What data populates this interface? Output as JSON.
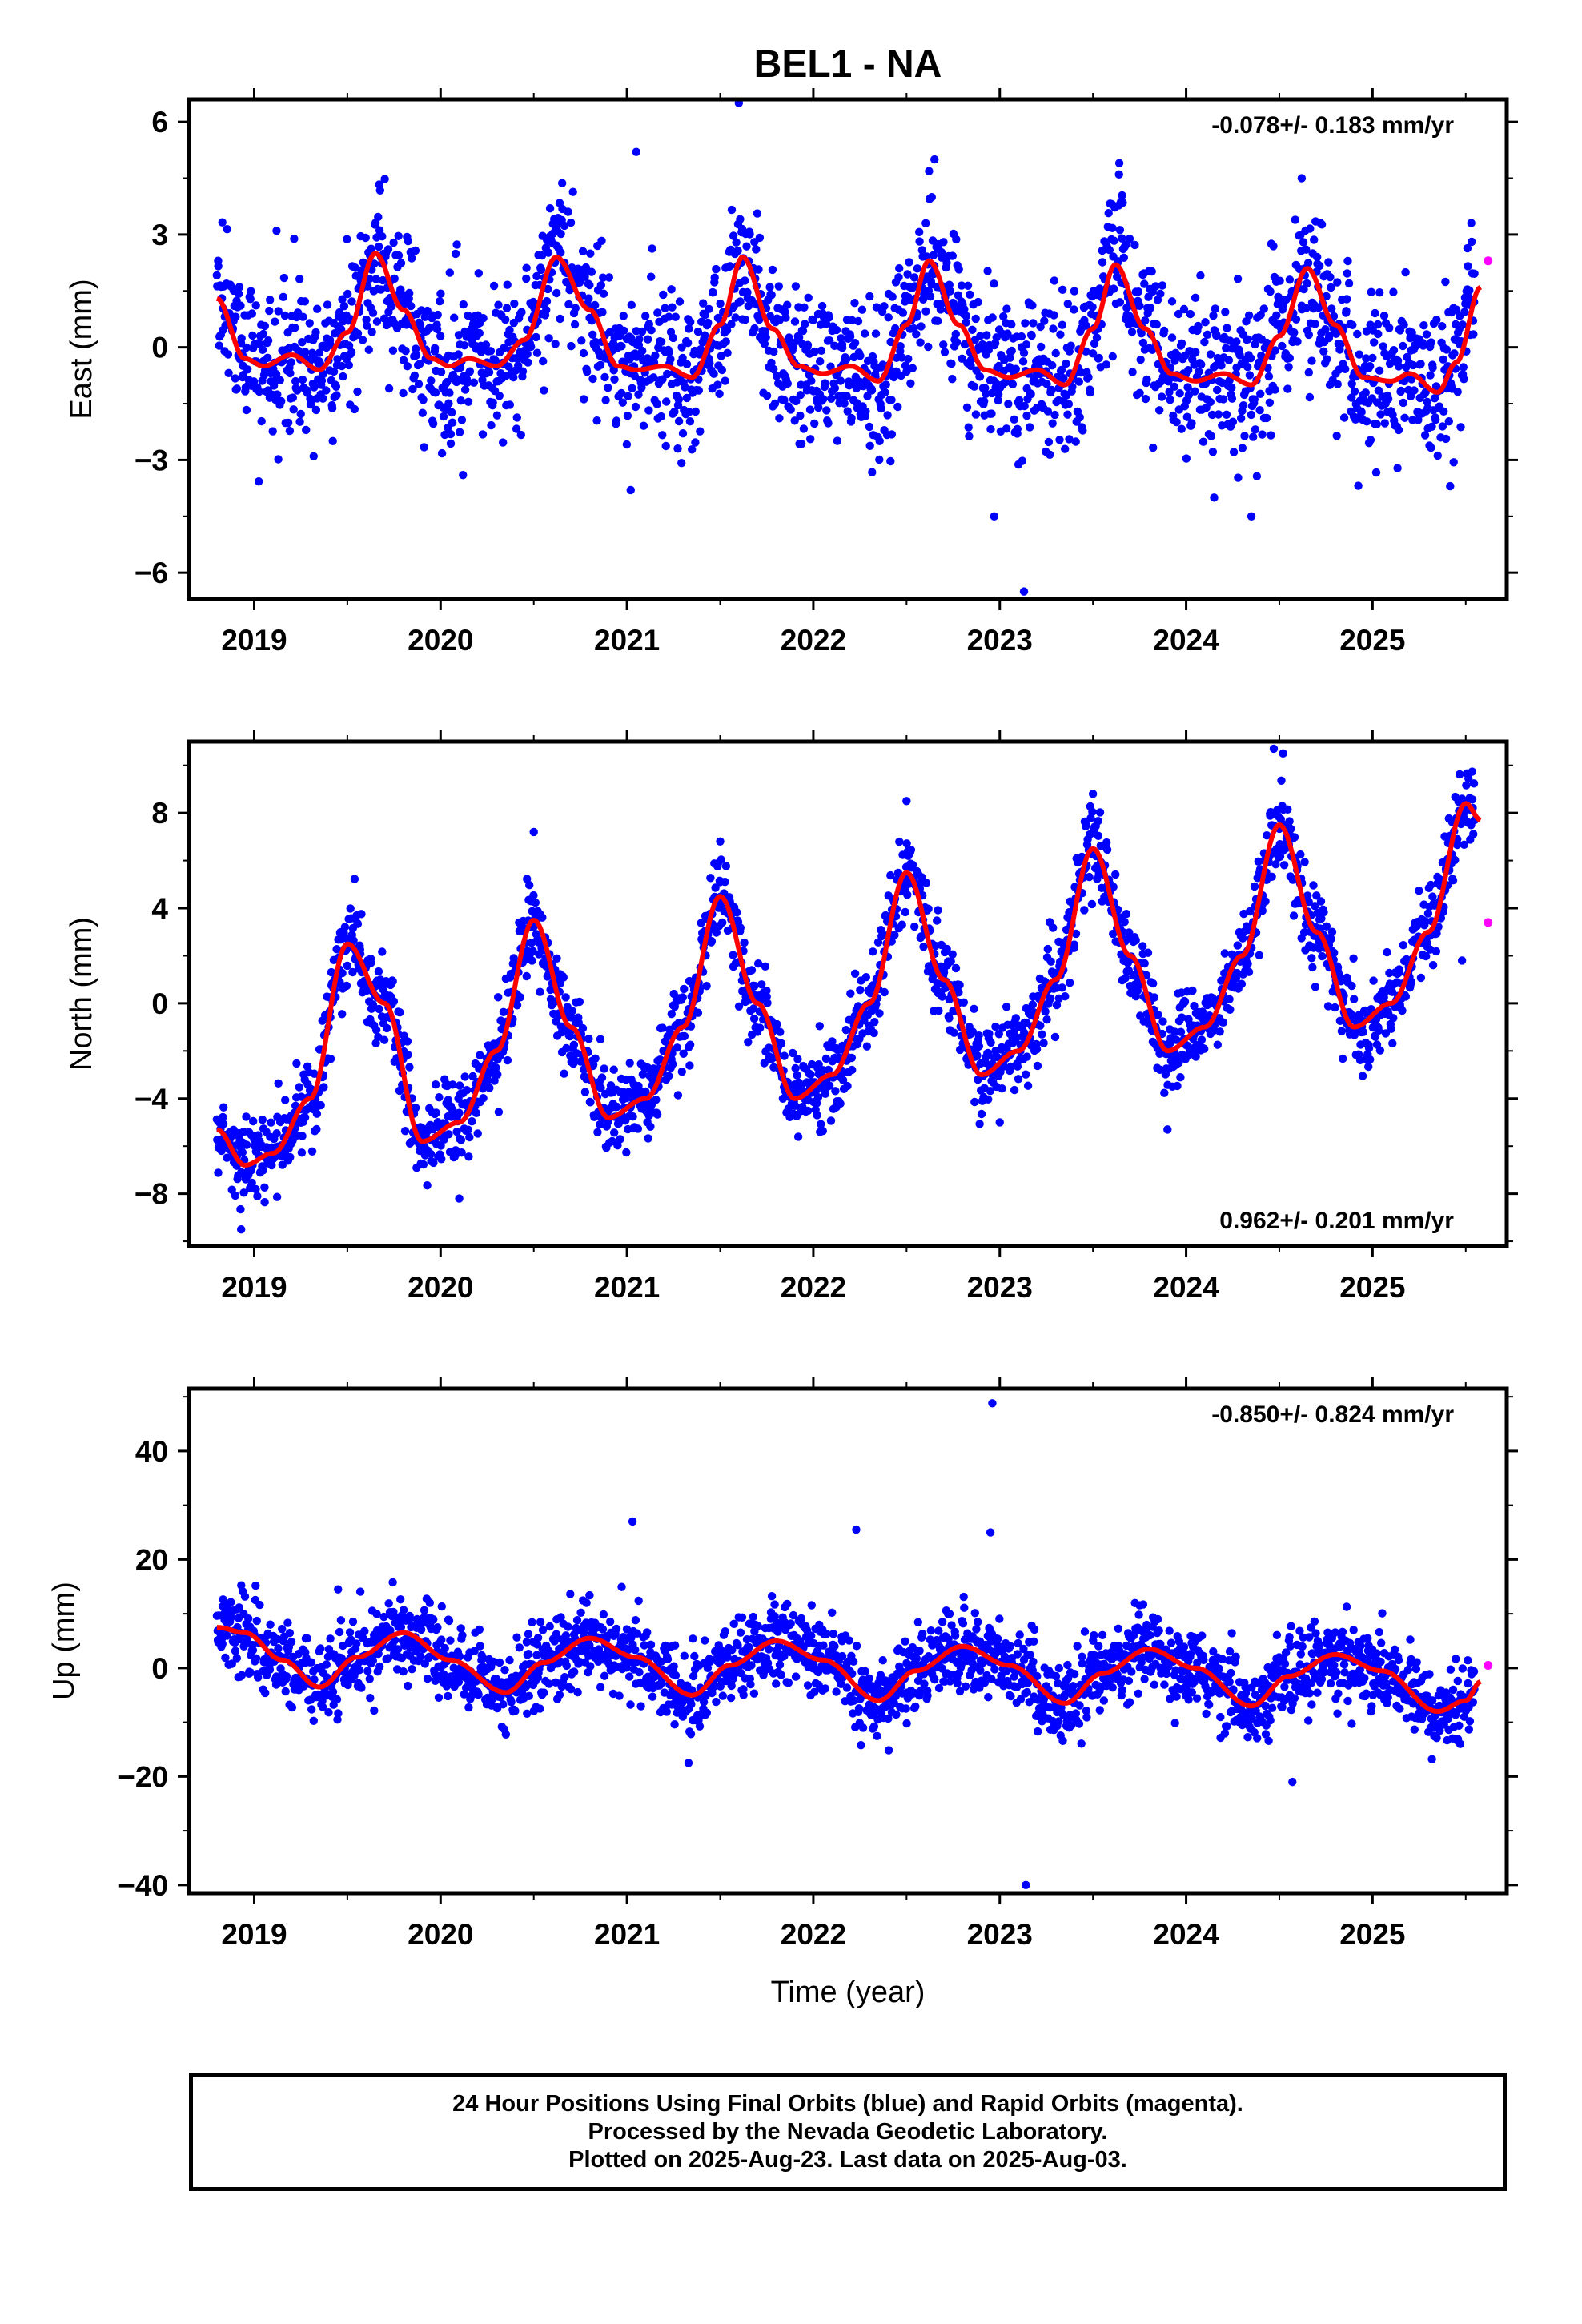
{
  "title": "BEL1 - NA",
  "colors": {
    "final": "#0000ff",
    "rapid": "#ff00ff",
    "model": "#ff0000",
    "frame": "#000000"
  },
  "chart_data": [
    {
      "type": "scatter",
      "ylabel": "East (mm)",
      "rate_label": "-0.078+/- 0.183 mm/yr",
      "xlim": [
        2018.65,
        2025.72
      ],
      "ylim": [
        -6.7,
        6.6
      ],
      "yticks": [
        -6,
        -3,
        0,
        3,
        6
      ],
      "ytick_labels": [
        "−6",
        "−3",
        "0",
        "3",
        "6"
      ],
      "xticks": [
        2019,
        2020,
        2021,
        2022,
        2023,
        2024,
        2025
      ],
      "xtick_labels": [
        "2019",
        "2020",
        "2021",
        "2022",
        "2023",
        "2024",
        "2025"
      ],
      "data_range": [
        2018.8,
        2025.55
      ],
      "trend_mm_per_yr": -0.078,
      "model_points": [
        [
          2018.8,
          1.3
        ],
        [
          2018.95,
          -0.3
        ],
        [
          2019.05,
          -0.5
        ],
        [
          2019.2,
          -0.2
        ],
        [
          2019.35,
          -0.6
        ],
        [
          2019.5,
          0.4
        ],
        [
          2019.65,
          2.5
        ],
        [
          2019.8,
          1.0
        ],
        [
          2019.95,
          -0.3
        ],
        [
          2020.05,
          -0.5
        ],
        [
          2020.15,
          -0.3
        ],
        [
          2020.3,
          -0.5
        ],
        [
          2020.45,
          0.2
        ],
        [
          2020.62,
          2.4
        ],
        [
          2020.8,
          1.0
        ],
        [
          2020.95,
          -0.5
        ],
        [
          2021.05,
          -0.6
        ],
        [
          2021.2,
          -0.5
        ],
        [
          2021.35,
          -0.8
        ],
        [
          2021.5,
          0.6
        ],
        [
          2021.62,
          2.4
        ],
        [
          2021.78,
          0.5
        ],
        [
          2021.92,
          -0.5
        ],
        [
          2022.05,
          -0.7
        ],
        [
          2022.2,
          -0.5
        ],
        [
          2022.35,
          -0.9
        ],
        [
          2022.5,
          0.6
        ],
        [
          2022.62,
          2.3
        ],
        [
          2022.78,
          0.6
        ],
        [
          2022.92,
          -0.6
        ],
        [
          2023.05,
          -0.8
        ],
        [
          2023.2,
          -0.6
        ],
        [
          2023.35,
          -1.0
        ],
        [
          2023.5,
          0.5
        ],
        [
          2023.62,
          2.2
        ],
        [
          2023.78,
          0.5
        ],
        [
          2023.92,
          -0.7
        ],
        [
          2024.05,
          -0.9
        ],
        [
          2024.2,
          -0.7
        ],
        [
          2024.35,
          -1.0
        ],
        [
          2024.5,
          0.3
        ],
        [
          2024.65,
          2.1
        ],
        [
          2024.8,
          0.6
        ],
        [
          2024.95,
          -0.8
        ],
        [
          2025.1,
          -0.9
        ],
        [
          2025.2,
          -0.7
        ],
        [
          2025.35,
          -1.2
        ],
        [
          2025.45,
          -0.4
        ],
        [
          2025.58,
          1.6
        ]
      ],
      "residual_sd_mm": 1.0,
      "outliers": [
        [
          2019.12,
          3.1
        ],
        [
          2020.12,
          -3.4
        ],
        [
          2021.05,
          5.2
        ],
        [
          2021.02,
          -3.8
        ],
        [
          2021.6,
          6.5
        ],
        [
          2022.65,
          5.0
        ],
        [
          2022.97,
          -4.5
        ],
        [
          2023.13,
          -6.5
        ],
        [
          2024.15,
          -4.0
        ],
        [
          2024.35,
          -4.5
        ],
        [
          2024.62,
          4.5
        ],
        [
          2023.64,
          4.6
        ]
      ],
      "rapid_points": [
        [
          2025.62,
          2.3
        ]
      ]
    },
    {
      "type": "scatter",
      "ylabel": "North (mm)",
      "rate_label": "0.962+/- 0.201 mm/yr",
      "xlim": [
        2018.65,
        2025.72
      ],
      "ylim": [
        -10.2,
        11.0
      ],
      "yticks": [
        -8,
        -4,
        0,
        4,
        8
      ],
      "ytick_labels": [
        "−8",
        "−4",
        "0",
        "4",
        "8"
      ],
      "xticks": [
        2019,
        2020,
        2021,
        2022,
        2023,
        2024,
        2025
      ],
      "xtick_labels": [
        "2019",
        "2020",
        "2021",
        "2022",
        "2023",
        "2024",
        "2025"
      ],
      "data_range": [
        2018.8,
        2025.55
      ],
      "trend_mm_per_yr": 0.962,
      "model_points": [
        [
          2018.8,
          -5.3
        ],
        [
          2018.95,
          -6.8
        ],
        [
          2019.1,
          -6.3
        ],
        [
          2019.3,
          -4.0
        ],
        [
          2019.5,
          2.5
        ],
        [
          2019.7,
          0.0
        ],
        [
          2019.9,
          -5.8
        ],
        [
          2020.1,
          -5.0
        ],
        [
          2020.3,
          -2.0
        ],
        [
          2020.5,
          3.5
        ],
        [
          2020.7,
          -1.0
        ],
        [
          2020.9,
          -4.8
        ],
        [
          2021.1,
          -4.0
        ],
        [
          2021.3,
          -1.0
        ],
        [
          2021.5,
          4.5
        ],
        [
          2021.7,
          0.0
        ],
        [
          2021.9,
          -4.0
        ],
        [
          2022.1,
          -3.0
        ],
        [
          2022.3,
          0.0
        ],
        [
          2022.5,
          5.5
        ],
        [
          2022.7,
          1.0
        ],
        [
          2022.9,
          -3.0
        ],
        [
          2023.1,
          -2.0
        ],
        [
          2023.3,
          1.0
        ],
        [
          2023.5,
          6.5
        ],
        [
          2023.7,
          2.0
        ],
        [
          2023.9,
          -2.0
        ],
        [
          2024.1,
          -1.0
        ],
        [
          2024.3,
          2.0
        ],
        [
          2024.5,
          7.5
        ],
        [
          2024.7,
          3.0
        ],
        [
          2024.9,
          -1.0
        ],
        [
          2025.1,
          0.0
        ],
        [
          2025.3,
          3.0
        ],
        [
          2025.5,
          8.4
        ],
        [
          2025.58,
          7.7
        ]
      ],
      "residual_sd_mm": 0.9,
      "outliers": [
        [
          2018.93,
          -9.5
        ],
        [
          2020.1,
          -8.2
        ],
        [
          2020.5,
          7.2
        ],
        [
          2021.5,
          6.8
        ],
        [
          2022.5,
          8.5
        ],
        [
          2023.5,
          8.8
        ],
        [
          2024.47,
          10.7
        ],
        [
          2024.52,
          10.5
        ],
        [
          2025.48,
          1.8
        ],
        [
          2023.0,
          -5.0
        ],
        [
          2023.9,
          -5.3
        ]
      ],
      "rapid_points": [
        [
          2025.62,
          3.4
        ]
      ]
    },
    {
      "type": "scatter",
      "ylabel": "Up (mm)",
      "rate_label": "-0.850+/- 0.824 mm/yr",
      "xlabel": "Time (year)",
      "xlim": [
        2018.65,
        2025.72
      ],
      "ylim": [
        -41.5,
        51.5
      ],
      "yticks": [
        -40,
        -20,
        0,
        20,
        40
      ],
      "ytick_labels": [
        "−40",
        "−20",
        "0",
        "20",
        "40"
      ],
      "xticks": [
        2019,
        2020,
        2021,
        2022,
        2023,
        2024,
        2025
      ],
      "xtick_labels": [
        "2019",
        "2020",
        "2021",
        "2022",
        "2023",
        "2024",
        "2025"
      ],
      "data_range": [
        2018.8,
        2025.55
      ],
      "trend_mm_per_yr": -0.85,
      "model_points": [
        [
          2018.8,
          7.5
        ],
        [
          2018.95,
          6.5
        ],
        [
          2019.15,
          1.5
        ],
        [
          2019.35,
          -3.5
        ],
        [
          2019.55,
          2.0
        ],
        [
          2019.8,
          6.5
        ],
        [
          2020.05,
          1.5
        ],
        [
          2020.35,
          -4.5
        ],
        [
          2020.55,
          1.0
        ],
        [
          2020.8,
          5.5
        ],
        [
          2021.05,
          2.0
        ],
        [
          2021.35,
          -5.0
        ],
        [
          2021.55,
          0.5
        ],
        [
          2021.8,
          5.0
        ],
        [
          2022.05,
          1.5
        ],
        [
          2022.35,
          -6.0
        ],
        [
          2022.55,
          -0.5
        ],
        [
          2022.8,
          4.0
        ],
        [
          2023.05,
          0.5
        ],
        [
          2023.35,
          -6.5
        ],
        [
          2023.55,
          -1.0
        ],
        [
          2023.8,
          3.5
        ],
        [
          2024.05,
          0.0
        ],
        [
          2024.35,
          -7.0
        ],
        [
          2024.55,
          -1.5
        ],
        [
          2024.8,
          2.5
        ],
        [
          2025.05,
          -0.5
        ],
        [
          2025.35,
          -8.0
        ],
        [
          2025.5,
          -6.0
        ],
        [
          2025.58,
          -2.5
        ]
      ],
      "residual_sd_mm": 3.8,
      "outliers": [
        [
          2021.03,
          27.0
        ],
        [
          2022.23,
          25.5
        ],
        [
          2022.96,
          48.8
        ],
        [
          2022.95,
          25.0
        ],
        [
          2023.14,
          -40.0
        ],
        [
          2024.57,
          -21.0
        ],
        [
          2021.33,
          -17.5
        ],
        [
          2019.45,
          14.5
        ]
      ],
      "rapid_points": [
        [
          2025.62,
          0.5
        ]
      ]
    }
  ],
  "footer": {
    "line1": "24 Hour Positions Using Final Orbits (blue) and Rapid Orbits (magenta).",
    "line2": "Processed by the Nevada Geodetic Laboratory.",
    "line3": "Plotted on 2025-Aug-23. Last data on 2025-Aug-03."
  }
}
